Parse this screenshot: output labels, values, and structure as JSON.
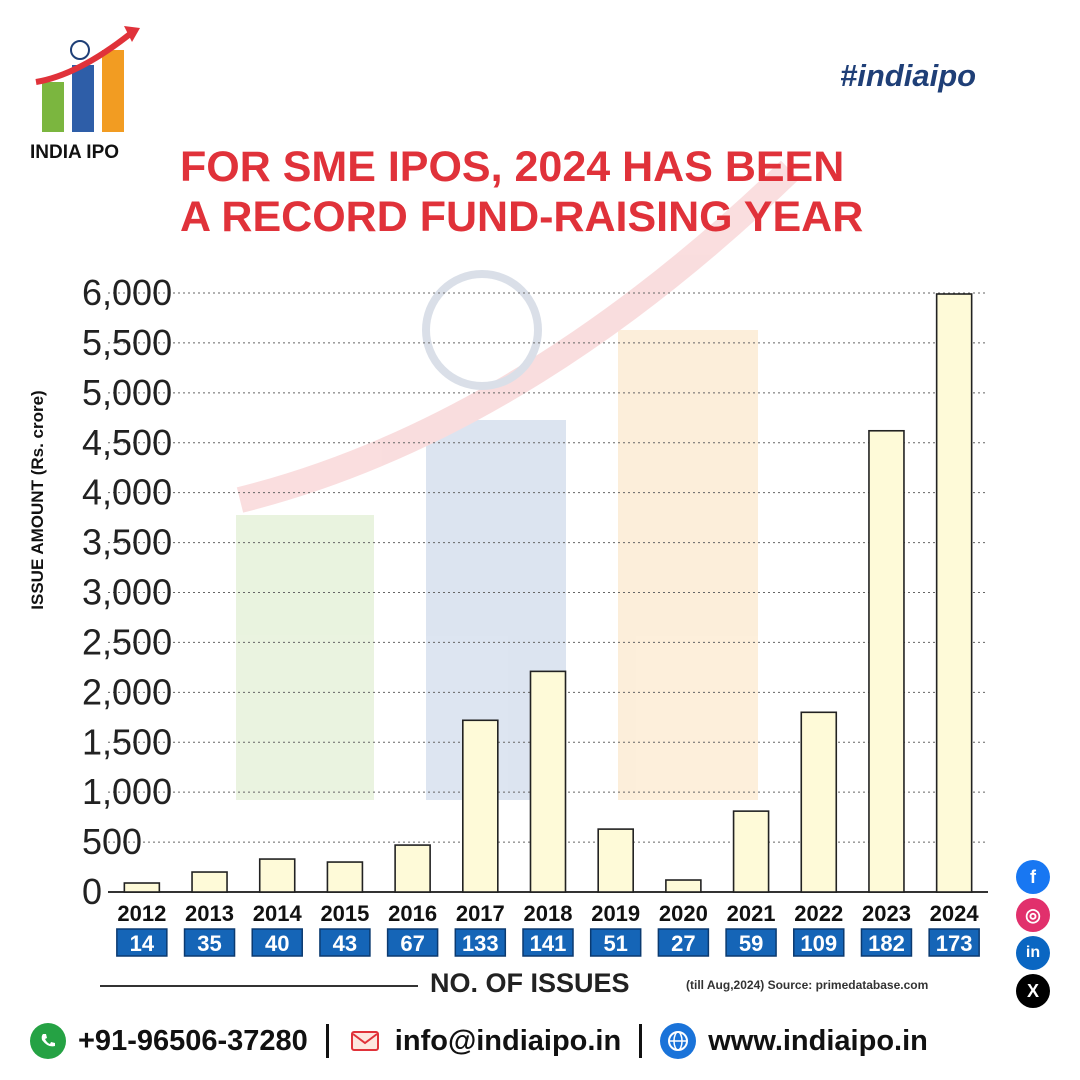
{
  "brand": {
    "name": "INDIA IPO",
    "hashtag": "#indiaipo"
  },
  "chart_data": {
    "type": "bar",
    "title": "FOR SME IPOS, 2024 HAS BEEN A RECORD FUND-RAISING YEAR",
    "title_lines": [
      "FOR SME IPOS, 2024 HAS BEEN",
      "A RECORD FUND-RAISING YEAR"
    ],
    "ylabel": "ISSUE AMOUNT (Rs. crore)",
    "xlabel": "NO. OF ISSUES",
    "ylim": [
      0,
      6000
    ],
    "yticks": [
      "0",
      "500",
      "1,000",
      "1,500",
      "2,000",
      "2,500",
      "3,000",
      "3,500",
      "4,000",
      "4,500",
      "5,000",
      "5,500",
      "6,000"
    ],
    "ytick_values": [
      0,
      500,
      1000,
      1500,
      2000,
      2500,
      3000,
      3500,
      4000,
      4500,
      5000,
      5500,
      6000
    ],
    "categories": [
      "2012",
      "2013",
      "2014",
      "2015",
      "2016",
      "2017",
      "2018",
      "2019",
      "2020",
      "2021",
      "2022",
      "2023",
      "2024"
    ],
    "values": [
      90,
      200,
      330,
      300,
      470,
      1720,
      2210,
      630,
      120,
      810,
      1800,
      4620,
      5990
    ],
    "issue_counts": [
      "14",
      "35",
      "40",
      "43",
      "67",
      "133",
      "141",
      "51",
      "27",
      "59",
      "109",
      "182",
      "173"
    ],
    "grid": "horizontal dotted",
    "bar_color": "#fefad8",
    "source": "(till Aug,2024) Source: primedatabase.com"
  },
  "social": {
    "facebook": "f",
    "instagram": "◎",
    "linkedin": "in",
    "x": "X"
  },
  "footer": {
    "phone": "+91-96506-37280",
    "email": "info@indiaipo.in",
    "website": "www.indiaipo.in"
  },
  "colors": {
    "title_red": "#e0323a",
    "navy": "#1f3f77",
    "issue_blue": "#1565b7"
  }
}
